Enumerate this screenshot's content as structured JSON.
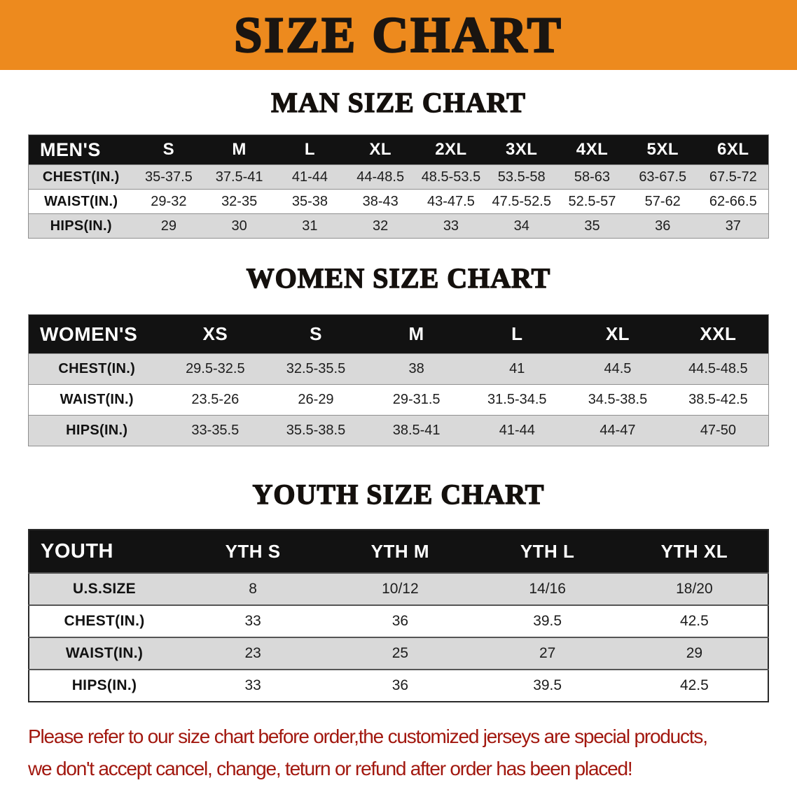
{
  "banner": {
    "title": "SIZE CHART"
  },
  "chart_data": [
    {
      "type": "table",
      "title": "MAN SIZE CHART",
      "columns": [
        "MEN'S",
        "S",
        "M",
        "L",
        "XL",
        "2XL",
        "3XL",
        "4XL",
        "5XL",
        "6XL"
      ],
      "rows": [
        [
          "CHEST(IN.)",
          "35-37.5",
          "37.5-41",
          "41-44",
          "44-48.5",
          "48.5-53.5",
          "53.5-58",
          "58-63",
          "63-67.5",
          "67.5-72"
        ],
        [
          "WAIST(IN.)",
          "29-32",
          "32-35",
          "35-38",
          "38-43",
          "43-47.5",
          "47.5-52.5",
          "52.5-57",
          "57-62",
          "62-66.5"
        ],
        [
          "HIPS(IN.)",
          "29",
          "30",
          "31",
          "32",
          "33",
          "34",
          "35",
          "36",
          "37"
        ]
      ]
    },
    {
      "type": "table",
      "title": "WOMEN SIZE CHART",
      "columns": [
        "WOMEN'S",
        "XS",
        "S",
        "M",
        "L",
        "XL",
        "XXL"
      ],
      "rows": [
        [
          "CHEST(IN.)",
          "29.5-32.5",
          "32.5-35.5",
          "38",
          "41",
          "44.5",
          "44.5-48.5"
        ],
        [
          "WAIST(IN.)",
          "23.5-26",
          "26-29",
          "29-31.5",
          "31.5-34.5",
          "34.5-38.5",
          "38.5-42.5"
        ],
        [
          "HIPS(IN.)",
          "33-35.5",
          "35.5-38.5",
          "38.5-41",
          "41-44",
          "44-47",
          "47-50"
        ]
      ]
    },
    {
      "type": "table",
      "title": "YOUTH SIZE CHART",
      "columns": [
        "YOUTH",
        "YTH S",
        "YTH M",
        "YTH L",
        "YTH XL"
      ],
      "rows": [
        [
          "U.S.SIZE",
          "8",
          "10/12",
          "14/16",
          "18/20"
        ],
        [
          "CHEST(IN.)",
          "33",
          "36",
          "39.5",
          "42.5"
        ],
        [
          "WAIST(IN.)",
          "23",
          "25",
          "27",
          "29"
        ],
        [
          "HIPS(IN.)",
          "33",
          "36",
          "39.5",
          "42.5"
        ]
      ]
    }
  ],
  "footer": {
    "line1": "Please refer to our size chart before order,the customized jerseys are special products,",
    "line2": "we don't accept cancel, change, teturn or refund after order has been placed!"
  },
  "colors": {
    "banner_bg": "#ED8A1E",
    "banner_text": "#1A1511",
    "table_header_bg": "#121212",
    "table_header_text": "#FFFFFF",
    "row_stripe": "#D9D9D9",
    "row_plain": "#FFFFFF",
    "footer_text": "#A2180F"
  }
}
